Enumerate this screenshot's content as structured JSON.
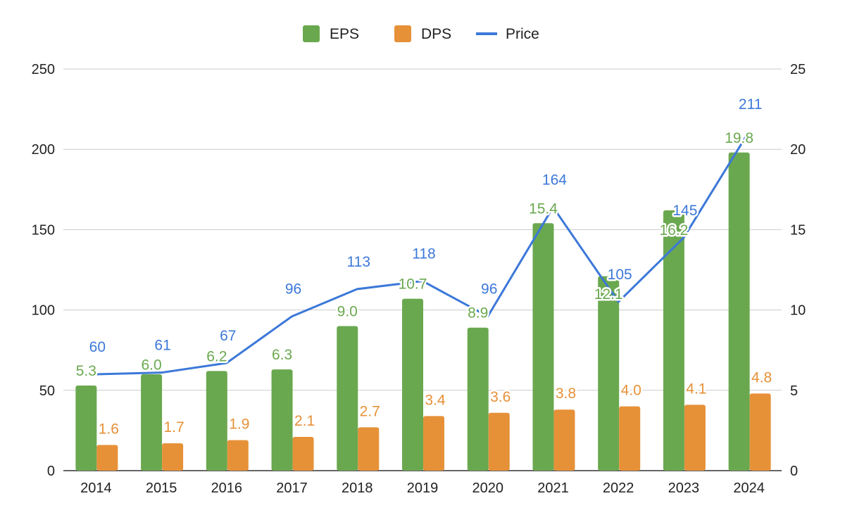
{
  "chart_data": {
    "type": "bar",
    "categories": [
      "2014",
      "2015",
      "2016",
      "2017",
      "2018",
      "2019",
      "2020",
      "2021",
      "2022",
      "2023",
      "2024"
    ],
    "series": [
      {
        "name": "EPS",
        "kind": "bar",
        "axis": "right",
        "color": "#6aa84f",
        "values": [
          5.3,
          6.0,
          6.2,
          6.3,
          9.0,
          10.7,
          8.9,
          15.4,
          12.1,
          16.2,
          19.8
        ],
        "labels": [
          "5.3",
          "6.0",
          "6.2",
          "6.3",
          "9.0",
          "10.7",
          "8.9",
          "15.4",
          "12.1",
          "16.2",
          "19.8"
        ]
      },
      {
        "name": "DPS",
        "kind": "bar",
        "axis": "right",
        "color": "#e69138",
        "values": [
          1.6,
          1.7,
          1.9,
          2.1,
          2.7,
          3.4,
          3.6,
          3.8,
          4.0,
          4.1,
          4.8
        ],
        "labels": [
          "1.6",
          "1.7",
          "1.9",
          "2.1",
          "2.7",
          "3.4",
          "3.6",
          "3.8",
          "4.0",
          "4.1",
          "4.8"
        ]
      },
      {
        "name": "Price",
        "kind": "line",
        "axis": "left",
        "color": "#3c78d8",
        "values": [
          60,
          61,
          67,
          96,
          113,
          118,
          96,
          164,
          105,
          145,
          211
        ],
        "labels": [
          "60",
          "61",
          "67",
          "96",
          "113",
          "118",
          "96",
          "164",
          "105",
          "145",
          "211"
        ]
      }
    ],
    "left_axis": {
      "min": 0,
      "max": 250,
      "ticks": [
        "0",
        "50",
        "100",
        "150",
        "200",
        "250"
      ]
    },
    "right_axis": {
      "min": 0,
      "max": 25,
      "ticks": [
        "0",
        "5",
        "10",
        "15",
        "20",
        "25"
      ]
    },
    "grid": true,
    "legend_position": "top-center",
    "title": "",
    "xlabel": "",
    "ylabel": ""
  }
}
